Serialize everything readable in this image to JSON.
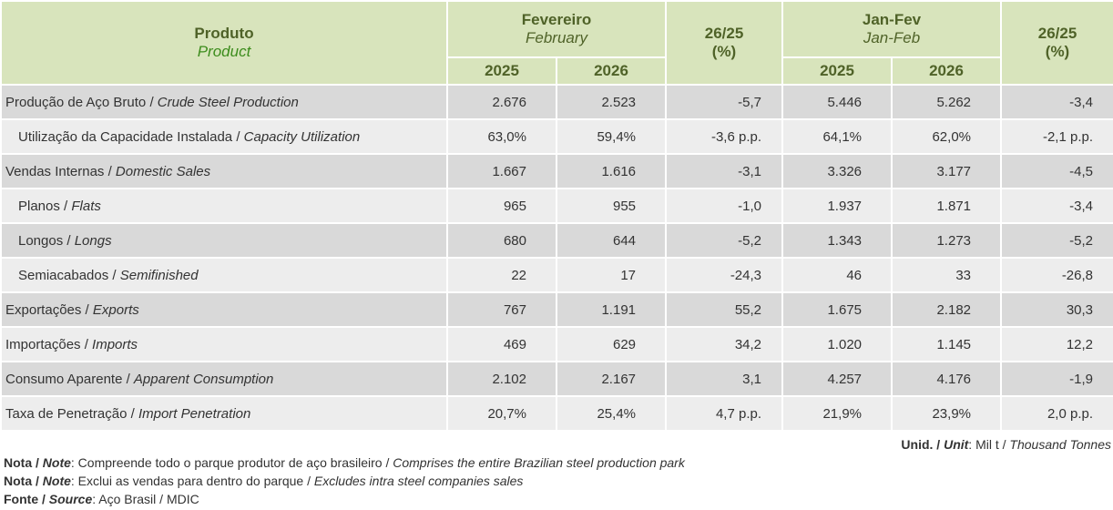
{
  "header": {
    "product": {
      "pt": "Produto",
      "en": "Product"
    },
    "groups": [
      {
        "pt": "Fevereiro",
        "en": "February",
        "years": [
          "2025",
          "2026"
        ],
        "change": {
          "label": "26/25",
          "unit": "(%)"
        }
      },
      {
        "pt": "Jan-Fev",
        "en": "Jan-Feb",
        "years": [
          "2025",
          "2026"
        ],
        "change": {
          "label": "26/25",
          "unit": "(%)"
        }
      }
    ]
  },
  "rows": [
    {
      "pt": "Produção de Aço Bruto / ",
      "en": "Crude Steel Production",
      "indent": false,
      "values": [
        "2.676",
        "2.523",
        "-5,7",
        "5.446",
        "5.262",
        "-3,4"
      ]
    },
    {
      "pt": "Utilização da Capacidade Instalada / ",
      "en": "Capacity Utilization",
      "indent": true,
      "values": [
        "63,0%",
        "59,4%",
        "-3,6 p.p.",
        "64,1%",
        "62,0%",
        "-2,1 p.p."
      ]
    },
    {
      "pt": "Vendas Internas / ",
      "en": "Domestic Sales",
      "indent": false,
      "values": [
        "1.667",
        "1.616",
        "-3,1",
        "3.326",
        "3.177",
        "-4,5"
      ]
    },
    {
      "pt": "Planos / ",
      "en": "Flats",
      "indent": true,
      "values": [
        "965",
        "955",
        "-1,0",
        "1.937",
        "1.871",
        "-3,4"
      ]
    },
    {
      "pt": "Longos / ",
      "en": "Longs",
      "indent": true,
      "values": [
        "680",
        "644",
        "-5,2",
        "1.343",
        "1.273",
        "-5,2"
      ]
    },
    {
      "pt": "Semiacabados / ",
      "en": "Semifinished",
      "indent": true,
      "values": [
        "22",
        "17",
        "-24,3",
        "46",
        "33",
        "-26,8"
      ]
    },
    {
      "pt": "Exportações / ",
      "en": "Exports",
      "indent": false,
      "values": [
        "767",
        "1.191",
        "55,2",
        "1.675",
        "2.182",
        "30,3"
      ]
    },
    {
      "pt": "Importações / ",
      "en": "Imports",
      "indent": false,
      "values": [
        "469",
        "629",
        "34,2",
        "1.020",
        "1.145",
        "12,2"
      ]
    },
    {
      "pt": "Consumo Aparente / ",
      "en": "Apparent Consumption",
      "indent": false,
      "values": [
        "2.102",
        "2.167",
        "3,1",
        "4.257",
        "4.176",
        "-1,9"
      ]
    },
    {
      "pt": "Taxa de Penetração / ",
      "en": "Import Penetration",
      "indent": false,
      "values": [
        "20,7%",
        "25,4%",
        "4,7 p.p.",
        "21,9%",
        "23,9%",
        "2,0 p.p."
      ]
    }
  ],
  "unit": [
    {
      "text": "Unid. / ",
      "style": "b"
    },
    {
      "text": "Unit",
      "style": "bi"
    },
    {
      "text": ": Mil t / ",
      "style": ""
    },
    {
      "text": "Thousand Tonnes",
      "style": "i"
    }
  ],
  "notes": [
    [
      {
        "text": "Nota / ",
        "style": "b"
      },
      {
        "text": "Note",
        "style": "bi"
      },
      {
        "text": ": Compreende todo o parque produtor de aço brasileiro / ",
        "style": ""
      },
      {
        "text": "Comprises the entire Brazilian steel production park",
        "style": "i"
      }
    ],
    [
      {
        "text": "Nota / ",
        "style": "b"
      },
      {
        "text": "Note",
        "style": "bi"
      },
      {
        "text": ": Exclui as vendas para dentro do parque / ",
        "style": ""
      },
      {
        "text": "Excludes intra steel companies sales",
        "style": "i"
      }
    ],
    [
      {
        "text": "Fonte / ",
        "style": "b"
      },
      {
        "text": "Source",
        "style": "bi"
      },
      {
        "text": ": Aço Brasil / MDIC",
        "style": ""
      }
    ]
  ]
}
